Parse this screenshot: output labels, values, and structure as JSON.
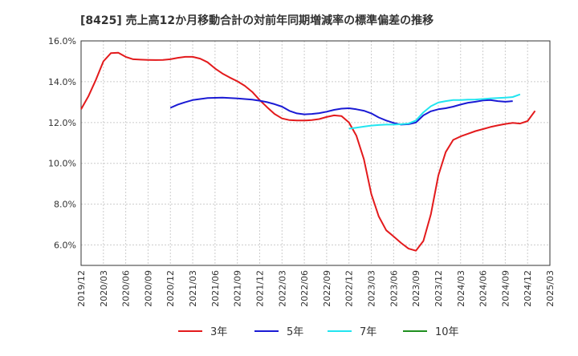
{
  "chart_data": {
    "type": "line",
    "title": "[8425]  売上高12か月移動合計の対前年同期増減率の標準偏差の推移",
    "ylim": [
      5.0,
      16.0
    ],
    "y_ticks": [
      6.0,
      8.0,
      10.0,
      12.0,
      14.0,
      16.0
    ],
    "y_tick_labels": [
      "6.0%",
      "8.0%",
      "10.0%",
      "12.0%",
      "14.0%",
      "16.0%"
    ],
    "x_tick_labels": [
      "2019/12",
      "2020/03",
      "2020/06",
      "2020/09",
      "2020/12",
      "2021/03",
      "2021/06",
      "2021/09",
      "2021/12",
      "2022/03",
      "2022/06",
      "2022/09",
      "2022/12",
      "2023/03",
      "2023/06",
      "2023/09",
      "2023/12",
      "2024/03",
      "2024/06",
      "2024/09",
      "2024/12",
      "2025/03"
    ],
    "grid": true,
    "legend_position": "bottom",
    "series": [
      {
        "name": "3年",
        "color": "#e31a1c",
        "start_index": 0,
        "values": [
          12.65,
          13.3,
          14.1,
          15.0,
          15.4,
          15.42,
          15.22,
          15.1,
          15.08,
          15.07,
          15.06,
          15.07,
          15.1,
          15.17,
          15.22,
          15.22,
          15.13,
          14.95,
          14.65,
          14.4,
          14.2,
          14.02,
          13.8,
          13.5,
          13.1,
          12.75,
          12.42,
          12.2,
          12.12,
          12.1,
          12.1,
          12.12,
          12.17,
          12.27,
          12.35,
          12.32,
          12.0,
          11.35,
          10.2,
          8.5,
          7.4,
          6.72,
          6.42,
          6.1,
          5.82,
          5.72,
          6.2,
          7.5,
          9.4,
          10.55,
          11.15,
          11.32,
          11.45,
          11.58,
          11.68,
          11.78,
          11.86,
          11.93,
          11.98,
          11.95,
          12.07,
          12.57
        ]
      },
      {
        "name": "5年",
        "color": "#1a1ad4",
        "start_index": 12,
        "values": [
          12.72,
          12.88,
          13.0,
          13.1,
          13.15,
          13.2,
          13.21,
          13.22,
          13.2,
          13.18,
          13.15,
          13.12,
          13.07,
          13.0,
          12.9,
          12.78,
          12.57,
          12.45,
          12.4,
          12.42,
          12.46,
          12.53,
          12.62,
          12.68,
          12.7,
          12.65,
          12.58,
          12.45,
          12.25,
          12.1,
          11.98,
          11.9,
          11.92,
          12.0,
          12.35,
          12.55,
          12.65,
          12.7,
          12.78,
          12.88,
          12.97,
          13.02,
          13.08,
          13.1,
          13.05,
          13.02,
          13.05
        ]
      },
      {
        "name": "7年",
        "color": "#22e5f0",
        "start_index": 36,
        "values": [
          11.7,
          11.75,
          11.8,
          11.85,
          11.88,
          11.9,
          11.9,
          11.92,
          11.95,
          12.1,
          12.5,
          12.8,
          12.98,
          13.05,
          13.1,
          13.1,
          13.12,
          13.13,
          13.15,
          13.18,
          13.2,
          13.22,
          13.25,
          13.38
        ]
      },
      {
        "name": "10年",
        "color": "#1f8f1f",
        "start_index": 0,
        "values": []
      }
    ]
  }
}
